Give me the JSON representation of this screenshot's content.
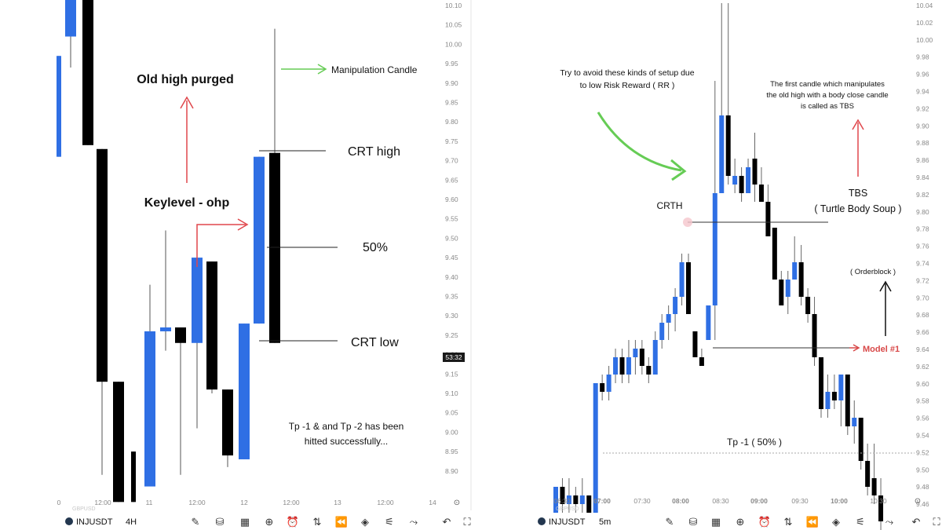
{
  "chart_data": [
    {
      "type": "candlestick",
      "symbol": "INJUSDT",
      "timeframe": "4H",
      "secondary_symbol": "GBPUSD",
      "y_ticks": [
        "10.10",
        "10.05",
        "10.00",
        "9.95",
        "9.90",
        "9.85",
        "9.80",
        "9.75",
        "9.70",
        "9.65",
        "9.60",
        "9.55",
        "9.50",
        "9.45",
        "9.40",
        "9.35",
        "9.30",
        "9.25",
        "9.20",
        "9.15",
        "9.10",
        "9.05",
        "9.00",
        "8.95",
        "8.90"
      ],
      "x_ticks": [
        "0",
        "12:00",
        "11",
        "12:00",
        "12",
        "12:00",
        "13",
        "12:00",
        "14"
      ],
      "price_badge": "53:32",
      "candles": [
        {
          "o": 9.71,
          "h": 9.97,
          "l": 9.71,
          "c": 9.97,
          "dir": "up"
        },
        {
          "o": 10.02,
          "h": 10.15,
          "l": 9.94,
          "c": 10.15,
          "dir": "up"
        },
        {
          "o": 10.15,
          "h": 10.15,
          "l": 9.74,
          "c": 9.74,
          "dir": "down"
        },
        {
          "o": 9.73,
          "h": 9.73,
          "l": 8.89,
          "c": 9.13,
          "dir": "down"
        },
        {
          "o": 9.13,
          "h": 9.13,
          "l": 8.82,
          "c": 8.82,
          "dir": "down"
        },
        {
          "o": 8.95,
          "h": 8.95,
          "l": 8.82,
          "c": 8.82,
          "dir": "down"
        },
        {
          "o": 8.86,
          "h": 9.38,
          "l": 8.86,
          "c": 9.26,
          "dir": "up"
        },
        {
          "o": 9.26,
          "h": 9.52,
          "l": 9.21,
          "c": 9.27,
          "dir": "up"
        },
        {
          "o": 9.27,
          "h": 9.27,
          "l": 8.89,
          "c": 9.23,
          "dir": "down"
        },
        {
          "o": 9.23,
          "h": 9.45,
          "l": 9.01,
          "c": 9.45,
          "dir": "up"
        },
        {
          "o": 9.44,
          "h": 9.44,
          "l": 9.1,
          "c": 9.11,
          "dir": "down"
        },
        {
          "o": 9.11,
          "h": 9.11,
          "l": 8.91,
          "c": 8.94,
          "dir": "down"
        },
        {
          "o": 8.93,
          "h": 9.28,
          "l": 8.93,
          "c": 9.28,
          "dir": "up"
        },
        {
          "o": 9.28,
          "h": 9.71,
          "l": 9.28,
          "c": 9.71,
          "dir": "up"
        },
        {
          "o": 9.72,
          "h": 10.04,
          "l": 9.23,
          "c": 9.23,
          "dir": "down"
        }
      ],
      "annotations": {
        "old_high": "Old high purged",
        "keylevel": "Keylevel - ohp",
        "manipulation": "Manipulation Candle",
        "crt_high": "CRT high",
        "fifty": "50%",
        "crt_low": "CRT low",
        "tp_line1": "Tp -1 & and Tp -2 has been",
        "tp_line2": "hitted successfully..."
      }
    },
    {
      "type": "candlestick",
      "symbol": "INJUSDT",
      "timeframe": "5m",
      "secondary_symbol": "GBPUSD",
      "y_ticks": [
        "10.04",
        "10.02",
        "10.00",
        "9.98",
        "9.96",
        "9.94",
        "9.92",
        "9.90",
        "9.88",
        "9.86",
        "9.84",
        "9.82",
        "9.80",
        "9.78",
        "9.76",
        "9.74",
        "9.72",
        "9.70",
        "9.68",
        "9.66",
        "9.64",
        "9.62",
        "9.60",
        "9.58",
        "9.56",
        "9.54",
        "9.52",
        "9.50",
        "9.48",
        "9.46"
      ],
      "x_ticks": [
        "06:30",
        "07:00",
        "07:30",
        "08:00",
        "08:30",
        "09:00",
        "09:30",
        "10:00",
        "10:30"
      ],
      "candles": [
        {
          "o": 9.46,
          "h": 9.49,
          "l": 9.46,
          "c": 9.49,
          "dir": "up"
        },
        {
          "o": 9.49,
          "h": 9.5,
          "l": 9.46,
          "c": 9.47,
          "dir": "down"
        },
        {
          "o": 9.47,
          "h": 9.5,
          "l": 9.46,
          "c": 9.48,
          "dir": "up"
        },
        {
          "o": 9.48,
          "h": 9.49,
          "l": 9.46,
          "c": 9.47,
          "dir": "down"
        },
        {
          "o": 9.47,
          "h": 9.5,
          "l": 9.46,
          "c": 9.48,
          "dir": "up"
        },
        {
          "o": 9.48,
          "h": 9.48,
          "l": 9.46,
          "c": 9.46,
          "dir": "down"
        },
        {
          "o": 9.46,
          "h": 9.61,
          "l": 9.46,
          "c": 9.61,
          "dir": "up"
        },
        {
          "o": 9.61,
          "h": 9.62,
          "l": 9.59,
          "c": 9.6,
          "dir": "down"
        },
        {
          "o": 9.6,
          "h": 9.63,
          "l": 9.59,
          "c": 9.62,
          "dir": "up"
        },
        {
          "o": 9.62,
          "h": 9.65,
          "l": 9.61,
          "c": 9.64,
          "dir": "up"
        },
        {
          "o": 9.64,
          "h": 9.65,
          "l": 9.61,
          "c": 9.62,
          "dir": "down"
        },
        {
          "o": 9.62,
          "h": 9.66,
          "l": 9.61,
          "c": 9.64,
          "dir": "up"
        },
        {
          "o": 9.64,
          "h": 9.66,
          "l": 9.62,
          "c": 9.65,
          "dir": "up"
        },
        {
          "o": 9.65,
          "h": 9.66,
          "l": 9.62,
          "c": 9.63,
          "dir": "down"
        },
        {
          "o": 9.63,
          "h": 9.64,
          "l": 9.61,
          "c": 9.62,
          "dir": "down"
        },
        {
          "o": 9.62,
          "h": 9.67,
          "l": 9.62,
          "c": 9.66,
          "dir": "up"
        },
        {
          "o": 9.66,
          "h": 9.69,
          "l": 9.65,
          "c": 9.68,
          "dir": "up"
        },
        {
          "o": 9.68,
          "h": 9.7,
          "l": 9.66,
          "c": 9.69,
          "dir": "up"
        },
        {
          "o": 9.69,
          "h": 9.72,
          "l": 9.67,
          "c": 9.71,
          "dir": "up"
        },
        {
          "o": 9.71,
          "h": 9.76,
          "l": 9.7,
          "c": 9.75,
          "dir": "up"
        },
        {
          "o": 9.75,
          "h": 9.76,
          "l": 9.69,
          "c": 9.69,
          "dir": "down"
        },
        {
          "o": 9.67,
          "h": 9.67,
          "l": 9.64,
          "c": 9.64,
          "dir": "down"
        },
        {
          "o": 9.64,
          "h": 9.65,
          "l": 9.63,
          "c": 9.63,
          "dir": "down"
        },
        {
          "o": 9.66,
          "h": 9.7,
          "l": 9.66,
          "c": 9.7,
          "dir": "up"
        },
        {
          "o": 9.7,
          "h": 9.96,
          "l": 9.66,
          "c": 9.83,
          "dir": "up"
        },
        {
          "o": 9.83,
          "h": 10.05,
          "l": 9.83,
          "c": 9.92,
          "dir": "up"
        },
        {
          "o": 9.92,
          "h": 10.05,
          "l": 9.84,
          "c": 9.85,
          "dir": "down"
        },
        {
          "o": 9.85,
          "h": 9.87,
          "l": 9.83,
          "c": 9.84,
          "dir": "up"
        },
        {
          "o": 9.85,
          "h": 9.86,
          "l": 9.82,
          "c": 9.83,
          "dir": "down"
        },
        {
          "o": 9.83,
          "h": 9.87,
          "l": 9.83,
          "c": 9.86,
          "dir": "up"
        },
        {
          "o": 9.87,
          "h": 9.9,
          "l": 9.82,
          "c": 9.84,
          "dir": "down"
        },
        {
          "o": 9.84,
          "h": 9.86,
          "l": 9.82,
          "c": 9.82,
          "dir": "down"
        },
        {
          "o": 9.82,
          "h": 9.84,
          "l": 9.78,
          "c": 9.78,
          "dir": "down"
        },
        {
          "o": 9.79,
          "h": 9.79,
          "l": 9.73,
          "c": 9.73,
          "dir": "down"
        },
        {
          "o": 9.73,
          "h": 9.74,
          "l": 9.7,
          "c": 9.7,
          "dir": "down"
        },
        {
          "o": 9.71,
          "h": 9.74,
          "l": 9.69,
          "c": 9.73,
          "dir": "up"
        },
        {
          "o": 9.73,
          "h": 9.78,
          "l": 9.73,
          "c": 9.75,
          "dir": "up"
        },
        {
          "o": 9.75,
          "h": 9.77,
          "l": 9.7,
          "c": 9.71,
          "dir": "down"
        },
        {
          "o": 9.71,
          "h": 9.72,
          "l": 9.68,
          "c": 9.69,
          "dir": "down"
        },
        {
          "o": 9.69,
          "h": 9.71,
          "l": 9.63,
          "c": 9.64,
          "dir": "down"
        },
        {
          "o": 9.64,
          "h": 9.64,
          "l": 9.57,
          "c": 9.58,
          "dir": "down"
        },
        {
          "o": 9.58,
          "h": 9.62,
          "l": 9.57,
          "c": 9.6,
          "dir": "up"
        },
        {
          "o": 9.6,
          "h": 9.62,
          "l": 9.58,
          "c": 9.59,
          "dir": "down"
        },
        {
          "o": 9.59,
          "h": 9.62,
          "l": 9.56,
          "c": 9.62,
          "dir": "up"
        },
        {
          "o": 9.62,
          "h": 9.62,
          "l": 9.55,
          "c": 9.56,
          "dir": "down"
        },
        {
          "o": 9.56,
          "h": 9.59,
          "l": 9.54,
          "c": 9.57,
          "dir": "up"
        },
        {
          "o": 9.57,
          "h": 9.57,
          "l": 9.51,
          "c": 9.52,
          "dir": "down"
        },
        {
          "o": 9.52,
          "h": 9.54,
          "l": 9.48,
          "c": 9.49,
          "dir": "down"
        },
        {
          "o": 9.5,
          "h": 9.54,
          "l": 9.47,
          "c": 9.48,
          "dir": "down"
        },
        {
          "o": 9.48,
          "h": 9.5,
          "l": 9.44,
          "c": 9.45,
          "dir": "down"
        }
      ],
      "annotations": {
        "note_line1": "Try to avoid these kinds of setup due",
        "note_line2": "to low Risk Reward ( RR )",
        "crth": "CRTH",
        "tbs_desc1": "The first candle which manipulates",
        "tbs_desc2": "the old high with a body close candle",
        "tbs_desc3": "is called as TBS",
        "tbs": "TBS",
        "tbs_full": "( Turtle Body Soup )",
        "orderblock": "( Orderblock )",
        "model": "Model #1",
        "tp": "Tp -1 ( 50% )"
      }
    }
  ],
  "colors": {
    "up": "#2f6fe4",
    "down": "#000000",
    "red_arrow": "#e0474c",
    "green_arrow": "#66cc55",
    "model": "#d84848"
  }
}
